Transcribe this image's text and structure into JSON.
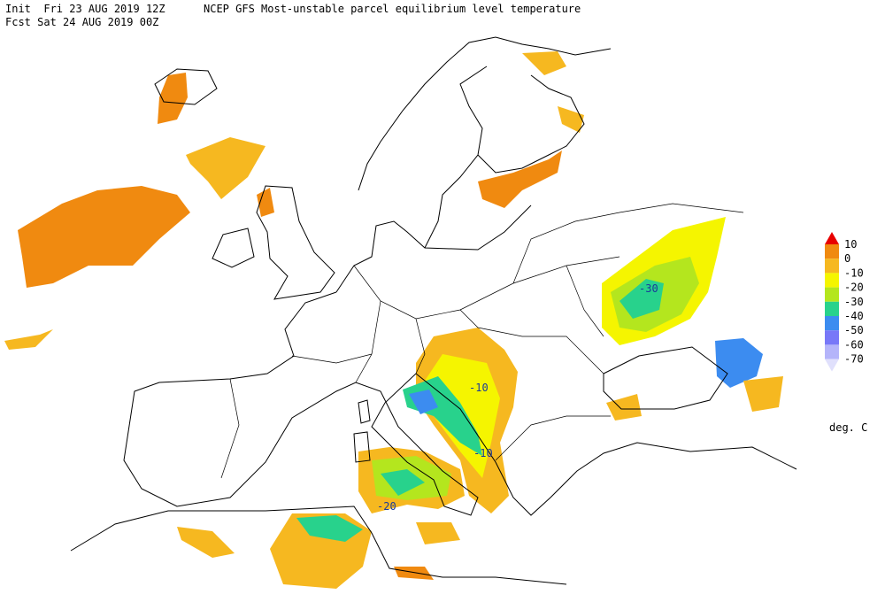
{
  "header": {
    "init": "Init  Fri 23 AUG 2019 12Z",
    "title": "NCEP GFS Most-unstable parcel equilibrium level temperature",
    "forecast": "Fcst Sat 24 AUG 2019 00Z"
  },
  "map": {
    "contour_labels": [
      "-30",
      "-10",
      "-10",
      "-20"
    ]
  },
  "legend": {
    "labels": [
      "10",
      "0",
      "-10",
      "-20",
      "-30",
      "-40",
      "-50",
      "-60",
      "-70"
    ],
    "colors": [
      "#e80000",
      "#f08a10",
      "#f6b820",
      "#f5f500",
      "#b4e61e",
      "#28d28c",
      "#3c8cf0",
      "#7878f8",
      "#b4b4fa",
      "#e0e0fc"
    ],
    "unit": "deg. C"
  }
}
